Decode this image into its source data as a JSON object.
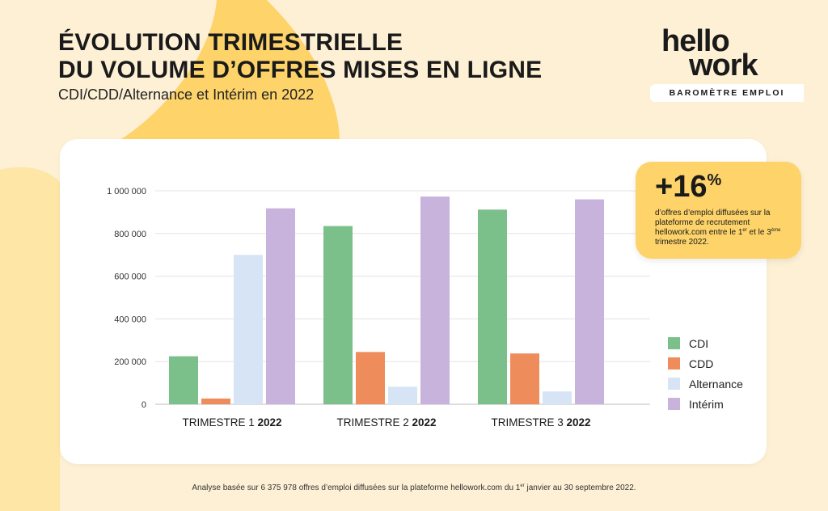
{
  "header": {
    "title_line1": "ÉVOLUTION TRIMESTRIELLE",
    "title_line2": "DU VOLUME D’OFFRES MISES EN LIGNE",
    "subtitle": "CDI/CDD/Alternance et Intérim en 2022"
  },
  "logo": {
    "line1": "hello",
    "line2": "work",
    "band": "BAROMÈTRE EMPLOI"
  },
  "callout": {
    "value": "+16",
    "unit": "%",
    "text_a": "d’offres d’emploi diffusées sur la plateforme de recrutement hellowork.com entre le 1",
    "sup1": "er",
    "text_b": " et le 3",
    "sup2": "ème",
    "text_c": " trimestre 2022."
  },
  "footnote": {
    "text_a": "Analyse basée sur 6 375 978 offres d’emploi diffusées sur la plateforme hellowork.com du 1",
    "sup": "er",
    "text_b": " janvier au 30 septembre 2022."
  },
  "colors": {
    "background": "#fdf0d5",
    "accent": "#fdd36a",
    "cdi": "#7bc08a",
    "cdd": "#ee8d5b",
    "alternance": "#d6e4f5",
    "interim": "#c8b3dc"
  },
  "chart_data": {
    "type": "bar",
    "title": "",
    "xlabel": "",
    "ylabel": "",
    "ylim": [
      0,
      1000000
    ],
    "yticks": [
      0,
      200000,
      400000,
      600000,
      800000,
      1000000
    ],
    "ytick_labels": [
      "0",
      "200 000",
      "400 000",
      "600 000",
      "800 000",
      "1 000 000"
    ],
    "grid": true,
    "legend_position": "right",
    "categories": [
      {
        "prefix": "TRIMESTRE 1 ",
        "year": "2022"
      },
      {
        "prefix": "TRIMESTRE 2 ",
        "year": "2022"
      },
      {
        "prefix": "TRIMESTRE 3 ",
        "year": "2022"
      }
    ],
    "series": [
      {
        "name": "CDI",
        "color": "#7bc08a",
        "values": [
          225000,
          835000,
          912000
        ]
      },
      {
        "name": "CDD",
        "color": "#ee8d5b",
        "values": [
          27000,
          245000,
          238000
        ]
      },
      {
        "name": "Alternance",
        "color": "#d6e4f5",
        "values": [
          700000,
          82000,
          60000
        ]
      },
      {
        "name": "Intérim",
        "color": "#c8b3dc",
        "values": [
          918000,
          973000,
          960000
        ]
      }
    ]
  }
}
